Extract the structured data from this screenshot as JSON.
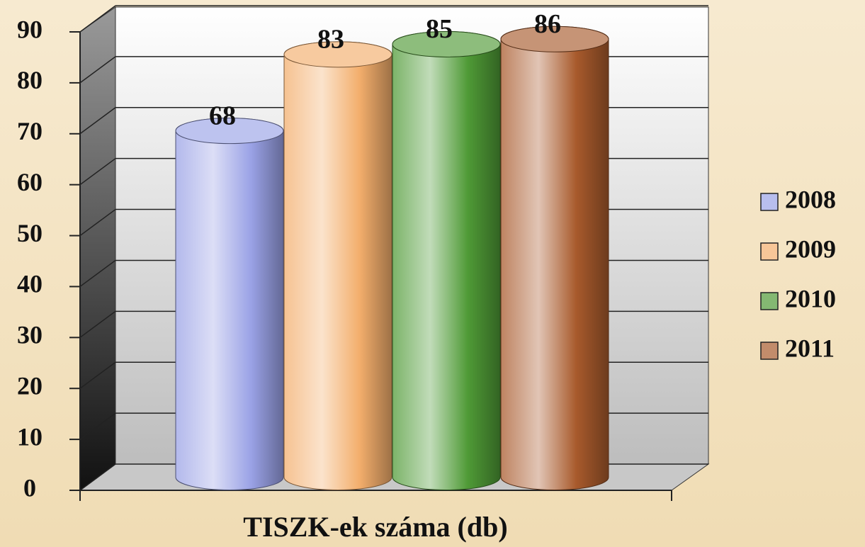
{
  "chart_data": {
    "type": "bar",
    "x_label": "TISZK-ek száma (db)",
    "series": [
      {
        "name": "2008",
        "color": "#9aa2e6",
        "values": [
          68
        ]
      },
      {
        "name": "2009",
        "color": "#f3ae6c",
        "values": [
          83
        ]
      },
      {
        "name": "2010",
        "color": "#4f9a36",
        "values": [
          85
        ]
      },
      {
        "name": "2011",
        "color": "#a85a2c",
        "values": [
          86
        ]
      }
    ],
    "ylim": [
      0,
      90
    ],
    "yticks": [
      0,
      10,
      20,
      30,
      40,
      50,
      60,
      70,
      80,
      90
    ],
    "grid": true,
    "legend": "right"
  }
}
